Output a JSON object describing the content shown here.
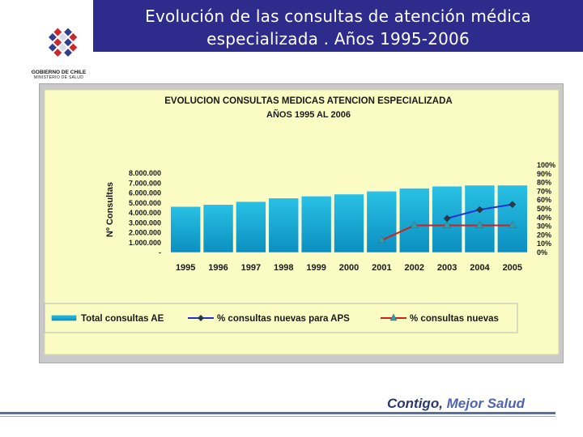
{
  "slide": {
    "title_line1": "Evolución de las consultas de atención médica",
    "title_line2": "especializada . Años 1995-2006",
    "logo_text": "GOBIERNO DE CHILE",
    "logo_subtext": "MINISTERIO DE SALUD",
    "slogan_part1": "Contigo,",
    "slogan_part2": " Mejor Salud",
    "colors": {
      "title_band": "#2d2c8c",
      "panel_bg": "#fafcc4",
      "bar_top": "#29c1e4",
      "bar_bottom": "#0b8fc0",
      "aps_line": "#2233cc",
      "nuevas_line": "#cc2222"
    },
    "icons": [
      "chilean-government-logo-icon"
    ]
  },
  "chart_data": {
    "type": "bar",
    "title": "EVOLUCION CONSULTAS MEDICAS ATENCION ESPECIALIZADA",
    "subtitle": "AÑOS 1995 AL 2006",
    "ylabel": "Nº Consultas",
    "categories": [
      "1995",
      "1996",
      "1997",
      "1998",
      "1999",
      "2000",
      "2001",
      "2002",
      "2003",
      "2004",
      "2005"
    ],
    "ylim": [
      0,
      9000000
    ],
    "y2lim": [
      0,
      100
    ],
    "yticks": [
      "-",
      "1.000.000",
      "2.000.000",
      "3.000.000",
      "4.000.000",
      "5.000.000",
      "6.000.000",
      "7.000.000",
      "8.000.000"
    ],
    "y2ticks": [
      "0%",
      "10%",
      "20%",
      "30%",
      "40%",
      "50%",
      "60%",
      "70%",
      "80%",
      "90%",
      "100%"
    ],
    "grid": false,
    "legend_position": "bottom",
    "series": [
      {
        "name": "Total consultas AE",
        "type": "bar",
        "axis": "left",
        "values": [
          4650000,
          4850000,
          5150000,
          5500000,
          5700000,
          5900000,
          6200000,
          6500000,
          6700000,
          6800000,
          6800000
        ]
      },
      {
        "name": "% consultas nuevas para APS",
        "type": "line",
        "axis": "right",
        "marker": "diamond",
        "values": [
          null,
          null,
          null,
          null,
          null,
          null,
          null,
          null,
          39,
          49,
          55
        ]
      },
      {
        "name": "% consultas nuevas",
        "type": "line",
        "axis": "right",
        "marker": "triangle",
        "values": [
          null,
          null,
          null,
          null,
          null,
          null,
          14,
          31,
          31,
          31,
          31
        ]
      }
    ]
  }
}
